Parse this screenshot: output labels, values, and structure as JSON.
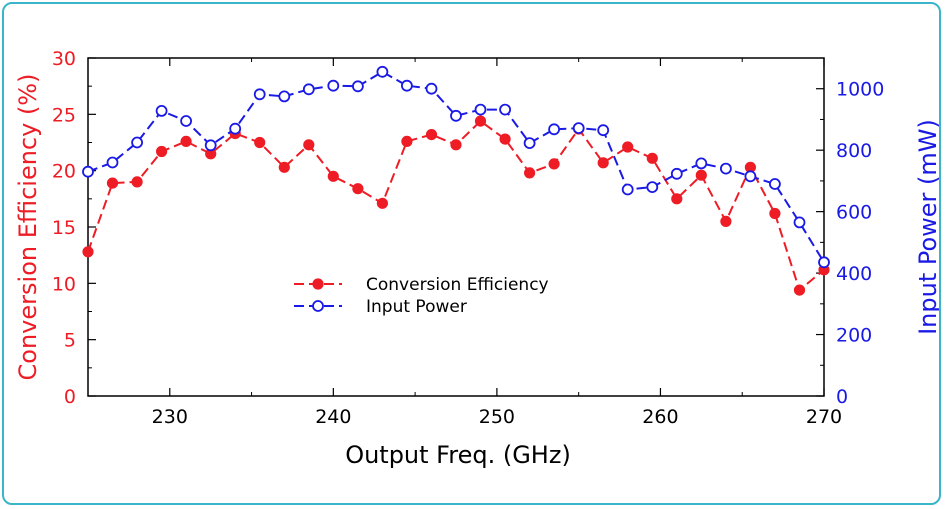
{
  "chart_data": {
    "type": "line",
    "xlabel": "Output Freq. (GHz)",
    "xlim": [
      225,
      270
    ],
    "x_ticks": [
      230,
      240,
      250,
      260,
      270
    ],
    "y_left": {
      "label": "Conversion Efficiency (%)",
      "lim": [
        0,
        30
      ],
      "ticks": [
        0,
        5,
        10,
        15,
        20,
        25,
        30
      ],
      "color": "#ee1c25"
    },
    "y_right": {
      "label": "Input Power (mW)",
      "lim": [
        0,
        1100
      ],
      "ticks": [
        0,
        200,
        400,
        600,
        800,
        1000
      ],
      "color": "#1a1ae6"
    },
    "grid": false,
    "legend_position": "center-left",
    "series": [
      {
        "name": "Conversion Efficiency",
        "axis": "left",
        "color": "#ee1c25",
        "marker": "filled-circle",
        "line": "dashed",
        "x": [
          225.0,
          226.5,
          228.0,
          229.5,
          231.0,
          232.5,
          234.0,
          235.5,
          237.0,
          238.5,
          240.0,
          241.5,
          243.0,
          244.5,
          246.0,
          247.5,
          249.0,
          250.5,
          252.0,
          253.5,
          255.0,
          256.5,
          258.0,
          259.5,
          261.0,
          262.5,
          264.0,
          265.5,
          267.0,
          268.5,
          270.0
        ],
        "values": [
          12.8,
          18.9,
          19.0,
          21.7,
          22.6,
          21.5,
          23.3,
          22.5,
          20.3,
          22.3,
          19.5,
          18.4,
          17.1,
          22.6,
          23.2,
          22.3,
          24.4,
          22.8,
          19.8,
          20.6,
          23.7,
          20.7,
          22.1,
          21.1,
          17.5,
          19.6,
          15.5,
          20.3,
          16.2,
          9.4,
          11.2
        ]
      },
      {
        "name": "Input Power",
        "axis": "right",
        "color": "#1a1ae6",
        "marker": "open-circle",
        "line": "dashed",
        "x": [
          225.0,
          226.5,
          228.0,
          229.5,
          231.0,
          232.5,
          234.0,
          235.5,
          237.0,
          238.5,
          240.0,
          241.5,
          243.0,
          244.5,
          246.0,
          247.5,
          249.0,
          250.5,
          252.0,
          253.5,
          255.0,
          256.5,
          258.0,
          259.5,
          261.0,
          262.5,
          264.0,
          265.5,
          267.0,
          268.5,
          270.0
        ],
        "values": [
          730,
          760,
          825,
          928,
          895,
          816,
          870,
          982,
          975,
          998,
          1010,
          1008,
          1055,
          1010,
          1000,
          912,
          932,
          932,
          823,
          868,
          872,
          865,
          672,
          680,
          723,
          757,
          740,
          715,
          690,
          565,
          435
        ]
      }
    ]
  }
}
